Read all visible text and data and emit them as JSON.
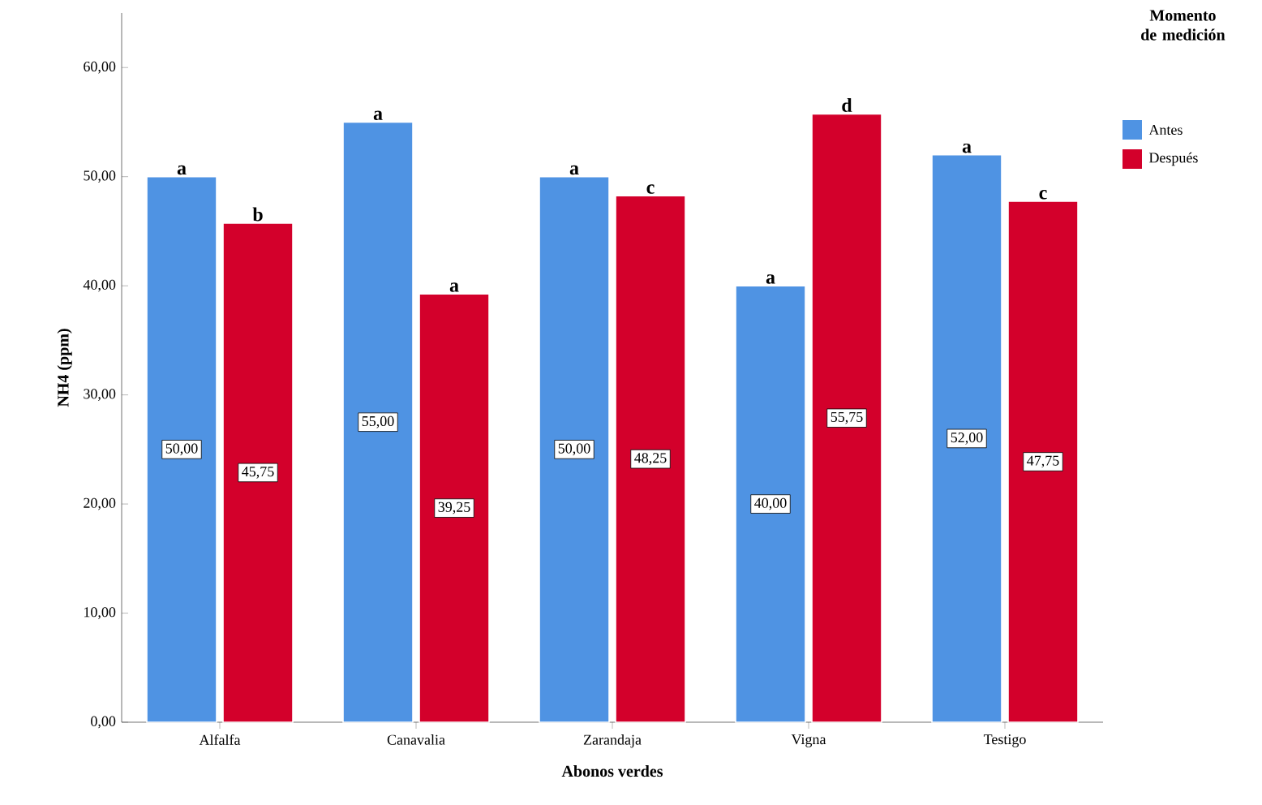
{
  "chart_data": {
    "type": "bar",
    "xlabel": "Abonos verdes",
    "ylabel": "NH4 (ppm)",
    "legend_title": "Momento de medición",
    "categories": [
      "Alfalfa",
      "Canavalia",
      "Zarandaja",
      "Vigna",
      "Testigo"
    ],
    "series": [
      {
        "name": "Antes",
        "color": "#4f93e3",
        "values": [
          50,
          55,
          50,
          40,
          52
        ],
        "value_labels": [
          "50,00",
          "55,00",
          "50,00",
          "40,00",
          "52,00"
        ]
      },
      {
        "name": "Después",
        "color": "#d3002b",
        "values": [
          45.75,
          39.25,
          48.25,
          55.75,
          47.75
        ],
        "value_labels": [
          "45,75",
          "39,25",
          "48,25",
          "55,75",
          "47,75"
        ]
      }
    ],
    "ylim": [
      0,
      65
    ],
    "yticks": [
      {
        "value": 0,
        "label": "0,00"
      },
      {
        "value": 10,
        "label": "10,00"
      },
      {
        "value": 20,
        "label": "20,00"
      },
      {
        "value": 30,
        "label": "30,00"
      },
      {
        "value": 40,
        "label": "40,00"
      },
      {
        "value": 50,
        "label": "50,00"
      },
      {
        "value": 60,
        "label": "60,00"
      }
    ],
    "annotations": [
      {
        "text": "a",
        "x": "Alfalfa",
        "y": 50
      },
      {
        "text": "b",
        "x": "Alfalfa",
        "y": 45.75
      },
      {
        "text": "a",
        "x": "Canavalia",
        "y": 55
      },
      {
        "text": "a",
        "x": "Canavalia",
        "y": 39.25
      },
      {
        "text": "a",
        "x": "Zarandaja",
        "y": 50
      },
      {
        "text": "c",
        "x": "Zarandaja",
        "y": 48.25
      },
      {
        "text": "a",
        "x": "Vigna",
        "y": 40
      },
      {
        "text": "d",
        "x": "Vigna",
        "y": 55.75
      },
      {
        "text": "a",
        "x": "Testigo",
        "y": 52
      },
      {
        "text": "c",
        "x": "Testigo",
        "y": 47.75
      }
    ],
    "grid": false,
    "legend": "right"
  }
}
